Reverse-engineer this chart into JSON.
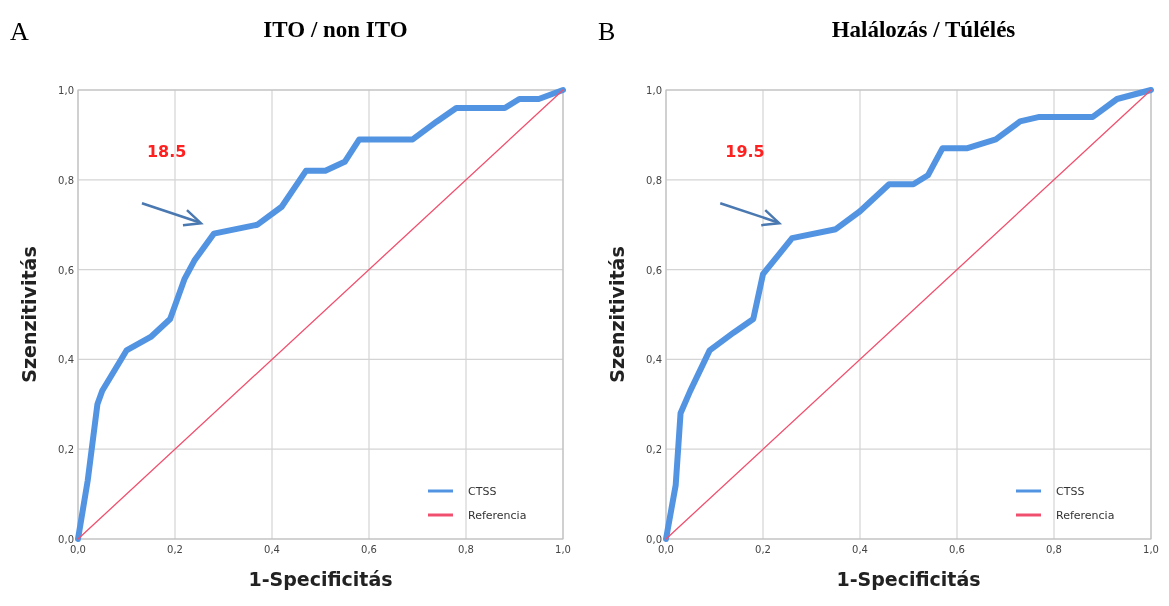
{
  "chart_data": [
    {
      "type": "line",
      "title": "ITO / non ITO",
      "xlabel": "1-Specificitás",
      "ylabel": "Szenzitivitás",
      "annotations": [
        "A",
        "18.5"
      ],
      "xlim": [
        0,
        1
      ],
      "ylim": [
        0,
        1
      ],
      "xticks": [
        {
          "value": 0,
          "label": "0,0"
        },
        {
          "value": 0.2,
          "label": "0,2"
        },
        {
          "value": 0.4,
          "label": "0,4"
        },
        {
          "value": 0.6,
          "label": "0,6"
        },
        {
          "value": 0.8,
          "label": "0,8"
        },
        {
          "value": 1,
          "label": "1,0"
        }
      ],
      "yticks": [
        {
          "value": 0,
          "label": "0,0"
        },
        {
          "value": 0.2,
          "label": "0,2"
        },
        {
          "value": 0.4,
          "label": "0,4"
        },
        {
          "value": 0.6,
          "label": "0,6"
        },
        {
          "value": 0.8,
          "label": "0,8"
        },
        {
          "value": 1,
          "label": "1,0"
        }
      ],
      "grid": true,
      "legend": "bottom right",
      "series": [
        {
          "name": "CTSS",
          "color": "#5294e2",
          "x": [
            0,
            0.02,
            0.04,
            0.05,
            0.1,
            0.15,
            0.19,
            0.22,
            0.24,
            0.28,
            0.37,
            0.42,
            0.47,
            0.51,
            0.55,
            0.58,
            0.69,
            0.74,
            0.78,
            0.88,
            0.91,
            0.95,
            1
          ],
          "values": [
            0,
            0.13,
            0.3,
            0.33,
            0.42,
            0.45,
            0.49,
            0.58,
            0.62,
            0.68,
            0.7,
            0.74,
            0.82,
            0.82,
            0.84,
            0.89,
            0.89,
            0.93,
            0.96,
            0.96,
            0.98,
            0.98,
            1
          ]
        },
        {
          "name": "Referencia",
          "color": "#f0506e",
          "x": [
            0,
            1
          ],
          "values": [
            0,
            1
          ]
        }
      ]
    },
    {
      "type": "line",
      "title": "Halálozás / Túlélés",
      "xlabel": "1-Specificitás",
      "ylabel": "Szenzitivitás",
      "annotations": [
        "B",
        "19.5"
      ],
      "xlim": [
        0,
        1
      ],
      "ylim": [
        0,
        1
      ],
      "xticks": [
        {
          "value": 0,
          "label": "0,0"
        },
        {
          "value": 0.2,
          "label": "0,2"
        },
        {
          "value": 0.4,
          "label": "0,4"
        },
        {
          "value": 0.6,
          "label": "0,6"
        },
        {
          "value": 0.8,
          "label": "0,8"
        },
        {
          "value": 1,
          "label": "1,0"
        }
      ],
      "yticks": [
        {
          "value": 0,
          "label": "0,0"
        },
        {
          "value": 0.2,
          "label": "0,2"
        },
        {
          "value": 0.4,
          "label": "0,4"
        },
        {
          "value": 0.6,
          "label": "0,6"
        },
        {
          "value": 0.8,
          "label": "0,8"
        },
        {
          "value": 1,
          "label": "1,0"
        }
      ],
      "grid": true,
      "legend": "bottom right",
      "series": [
        {
          "name": "CTSS",
          "color": "#5294e2",
          "x": [
            0,
            0.02,
            0.03,
            0.05,
            0.09,
            0.14,
            0.18,
            0.2,
            0.23,
            0.26,
            0.35,
            0.4,
            0.46,
            0.51,
            0.54,
            0.57,
            0.62,
            0.68,
            0.73,
            0.77,
            0.88,
            0.93,
            1
          ],
          "values": [
            0,
            0.12,
            0.28,
            0.33,
            0.42,
            0.46,
            0.49,
            0.59,
            0.63,
            0.67,
            0.69,
            0.73,
            0.79,
            0.79,
            0.81,
            0.87,
            0.87,
            0.89,
            0.93,
            0.94,
            0.94,
            0.98,
            1
          ]
        },
        {
          "name": "Referencia",
          "color": "#f0506e",
          "x": [
            0,
            1
          ],
          "values": [
            0,
            1
          ]
        }
      ]
    }
  ]
}
